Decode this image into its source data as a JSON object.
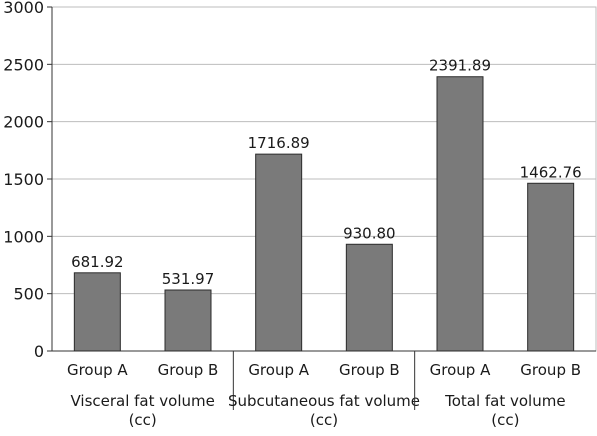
{
  "chart_data": {
    "type": "bar",
    "title": "",
    "xlabel": "",
    "ylabel": "",
    "ylim": [
      0,
      3000
    ],
    "yticks": [
      "0",
      "500",
      "1000",
      "1500",
      "2000",
      "2500",
      "3000"
    ],
    "grid": true,
    "legend": "none",
    "bar_color": "#7a7a7a",
    "groups": [
      {
        "label_lines": [
          "Visceral fat volume",
          "(cc)"
        ],
        "bars": [
          {
            "category": "Group A",
            "value": 681.92,
            "label": "681.92"
          },
          {
            "category": "Group B",
            "value": 531.97,
            "label": "531.97"
          }
        ]
      },
      {
        "label_lines": [
          "Subcutaneous fat volume",
          "(cc)"
        ],
        "bars": [
          {
            "category": "Group A",
            "value": 1716.89,
            "label": "1716.89"
          },
          {
            "category": "Group B",
            "value": 930.8,
            "label": "930.80"
          }
        ]
      },
      {
        "label_lines": [
          "Total fat volume",
          "(cc)"
        ],
        "bars": [
          {
            "category": "Group A",
            "value": 2391.89,
            "label": "2391.89"
          },
          {
            "category": "Group B",
            "value": 1462.76,
            "label": "1462.76"
          }
        ]
      }
    ]
  }
}
